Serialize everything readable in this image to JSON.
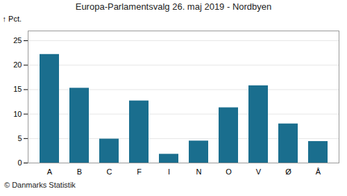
{
  "chart_data": {
    "type": "bar",
    "title": "Europa-Parlamentsvalg 26. maj 2019 - Nordbyen",
    "categories": [
      "A",
      "B",
      "C",
      "F",
      "I",
      "N",
      "O",
      "V",
      "Ø",
      "Å"
    ],
    "values": [
      22.2,
      15.3,
      4.9,
      12.7,
      1.8,
      4.5,
      11.3,
      15.8,
      8.0,
      4.4
    ],
    "color": "#1a6e8e",
    "ylabel": "Pct.",
    "ylim": [
      0,
      27
    ],
    "yticks": [
      0,
      5,
      10,
      15,
      20,
      25
    ],
    "grid": true,
    "caption": "© Danmarks Statistik"
  }
}
